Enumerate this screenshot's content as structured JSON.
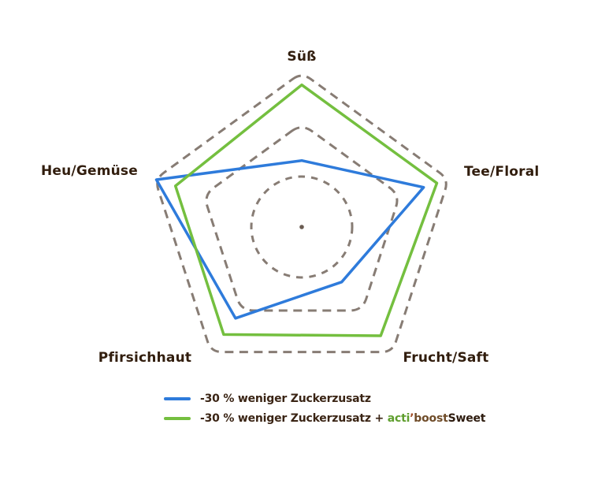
{
  "chart_data": {
    "type": "radar",
    "categories": [
      "Süß",
      "Tee/Floral",
      "Frucht/Saft",
      "Pfirsichhaut",
      "Heu/Gemüse"
    ],
    "scale_max": 10,
    "rings": [
      {
        "fraction": 0.3265,
        "shape": "circle"
      },
      {
        "fraction": 0.6683,
        "shape": "pentagon"
      },
      {
        "fraction": 1.0,
        "shape": "pentagon"
      }
    ],
    "series": [
      {
        "name": "-30 % weniger Zuckerzusatz",
        "color": "#2e7bdb",
        "values": [
          4.3,
          8.3,
          4.4,
          7.3,
          9.9
        ]
      },
      {
        "name": "-30 % weniger Zuckerzusatz + acti’boostSweet",
        "color": "#74bf3f",
        "values": [
          9.2,
          9.2,
          8.7,
          8.6,
          8.6
        ]
      }
    ],
    "grid_style": "dashed",
    "legend_position": "bottom-left"
  },
  "colors": {
    "grid": "#877c74",
    "center_dot": "#6a5c52",
    "axis_label": "#311d0d",
    "legend_text": "#3a2414",
    "series_blue": "#2e7bdb",
    "series_green": "#74bf3f",
    "brand_acti": "#5f9e2e",
    "brand_boost": "#6f4c29",
    "brand_sweet": "#2d1b0e"
  },
  "legend": {
    "row1": {
      "label": "-30 % weniger Zuckerzusatz"
    },
    "row2": {
      "prefix": "-30 % weniger Zuckerzusatz + ",
      "brand_part1": "acti",
      "brand_tick": "’",
      "brand_part2": "boost",
      "brand_part3": "Sweet"
    }
  }
}
